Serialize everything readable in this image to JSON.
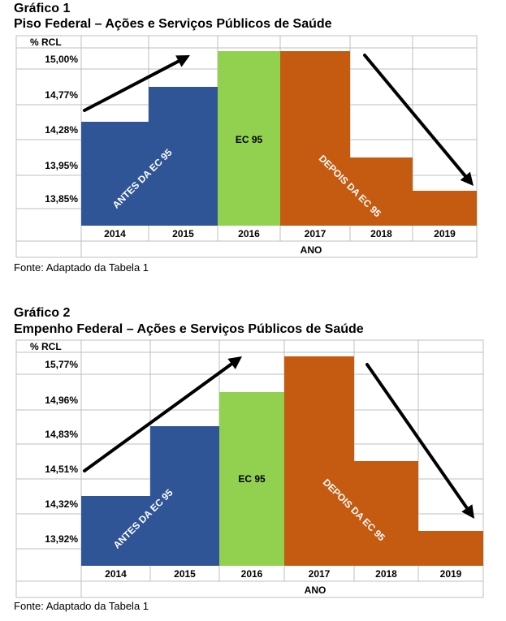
{
  "charts": [
    {
      "heading": "Gráfico 1",
      "subtitle": "Piso Federal – Ações e Serviços Públicos de Saúde",
      "source": "Fonte: Adaptado da Tabela 1"
    },
    {
      "heading": "Gráfico 2",
      "subtitle": "Empenho Federal – Ações e Serviços Públicos de Saúde",
      "source": "Fonte: Adaptado da Tabela 1"
    }
  ],
  "colors": {
    "antes": "#2f5597",
    "ec95": "#92d050",
    "depois": "#c55a11",
    "grid": "#bfbfbf",
    "arrow": "#000000"
  },
  "chart_data": [
    {
      "type": "bar",
      "title": "Piso Federal – Ações e Serviços Públicos de Saúde",
      "ylabel": "% RCL",
      "xlabel": "ANO",
      "categories": [
        "2014",
        "2015",
        "2016",
        "2017",
        "2018",
        "2019"
      ],
      "values": [
        14.28,
        14.77,
        15.0,
        15.0,
        13.95,
        13.85
      ],
      "ytick_labels": [
        "15,00%",
        "14,77%",
        "14,28%",
        "13,95%",
        "13,85%"
      ],
      "bar_groups": [
        "antes",
        "antes",
        "ec95",
        "depois",
        "depois",
        "depois"
      ],
      "annotations": {
        "antes": "ANTES DA EC 95",
        "ec95": "EC 95",
        "depois": "DEPOIS DA EC 95"
      },
      "grid": true
    },
    {
      "type": "bar",
      "title": "Empenho Federal – Ações e Serviços Públicos de Saúde",
      "ylabel": "% RCL",
      "xlabel": "ANO",
      "categories": [
        "2014",
        "2015",
        "2016",
        "2017",
        "2018",
        "2019"
      ],
      "values": [
        14.32,
        14.83,
        14.96,
        15.77,
        14.51,
        13.92
      ],
      "ytick_labels": [
        "15,77%",
        "14,96%",
        "14,83%",
        "14,51%",
        "14,32%",
        "13,92%"
      ],
      "bar_groups": [
        "antes",
        "antes",
        "ec95",
        "depois",
        "depois",
        "depois"
      ],
      "annotations": {
        "antes": "ANTES DA EC 95",
        "ec95": "EC 95",
        "depois": "DEPOIS DA EC 95"
      },
      "grid": true
    }
  ]
}
